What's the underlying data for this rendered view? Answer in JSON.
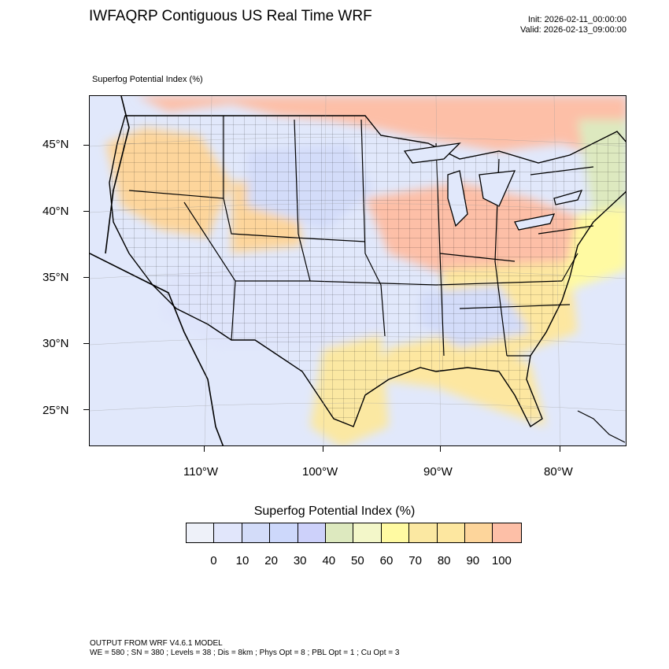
{
  "header": {
    "title": "IWFAQRP Contiguous US Real Time WRF",
    "init": "Init: 2026-02-11_00:00:00",
    "valid": "Valid: 2026-02-13_09:00:00"
  },
  "plot": {
    "label": "Superfog Potential Index   (%)",
    "lat_ticks": [
      "45°N",
      "40°N",
      "35°N",
      "30°N",
      "25°N"
    ],
    "lon_ticks": [
      "110°W",
      "100°W",
      "90°W",
      "80°W"
    ]
  },
  "colorbar": {
    "title": "Superfog Potential Index  (%)",
    "labels": [
      "0",
      "10",
      "20",
      "30",
      "40",
      "50",
      "60",
      "70",
      "80",
      "90",
      "100"
    ],
    "colors": [
      "#eef1f9",
      "#e1e6fb",
      "#d3dcf9",
      "#cdd8fb",
      "#cdd1fa",
      "#dde9bf",
      "#f3f7c9",
      "#fffaa2",
      "#fbe8a2",
      "#fde7a0",
      "#fdd59b",
      "#fdbfa7"
    ]
  },
  "footer": {
    "line1": "OUTPUT FROM WRF V4.6.1 MODEL",
    "line2": "WE = 580 ; SN = 380 ; Levels = 38 ; Dis = 8km ; Phys Opt = 8 ; PBL Opt = 1 ; Cu Opt = 3"
  }
}
